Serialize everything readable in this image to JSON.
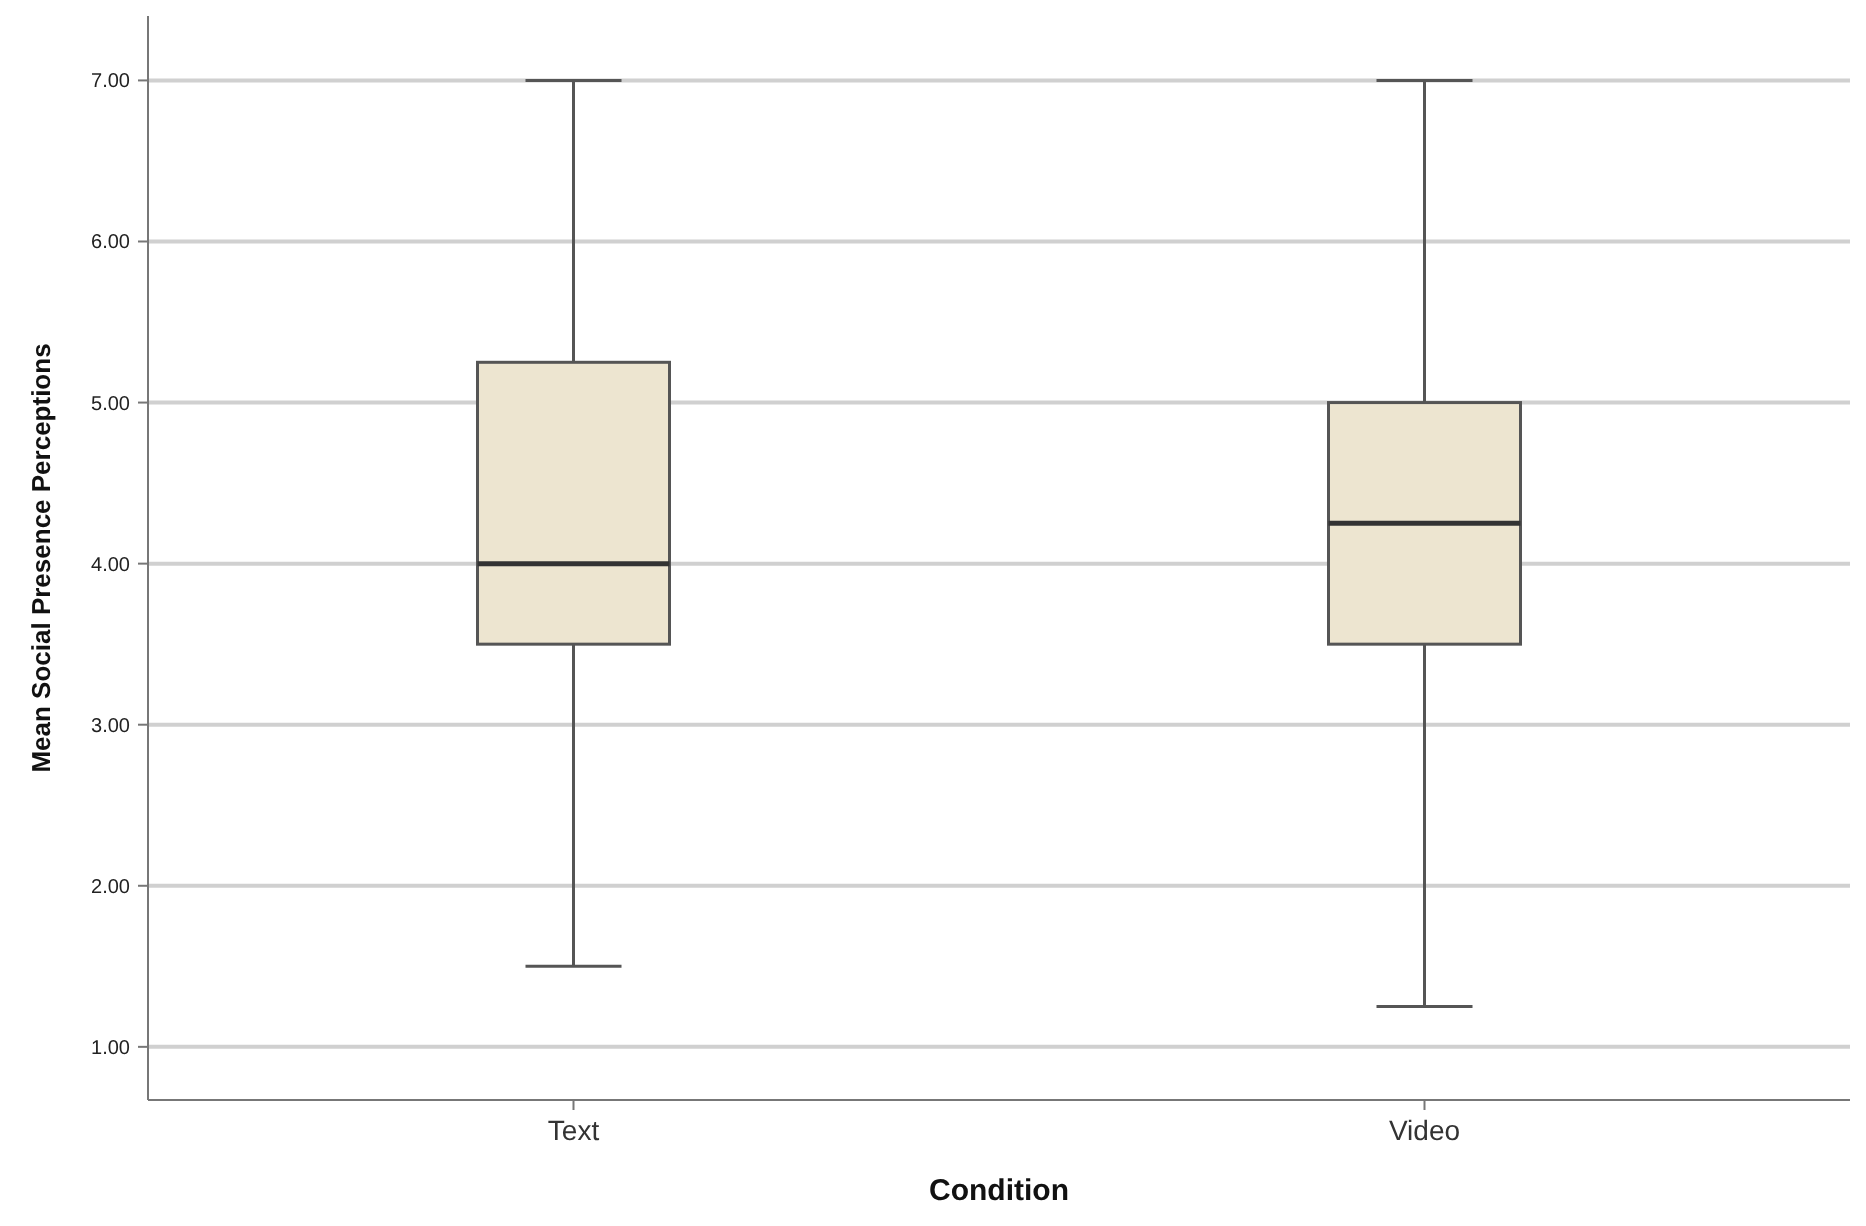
{
  "chart_data": {
    "type": "box",
    "xlabel": "Condition",
    "ylabel": "Mean Social Presence Perceptions",
    "categories": [
      "Text",
      "Video"
    ],
    "color": "#ede5d0",
    "boxes": [
      {
        "low": 1.5,
        "q1": 3.5,
        "median": 4.0,
        "q3": 5.25,
        "high": 7.0
      },
      {
        "low": 1.25,
        "q1": 3.5,
        "median": 4.25,
        "q3": 5.0,
        "high": 7.0
      }
    ],
    "ylim": [
      0.67,
      7.4
    ],
    "yticks": [
      {
        "value": 1,
        "label": "1.00"
      },
      {
        "value": 2,
        "label": "2.00"
      },
      {
        "value": 3,
        "label": "3.00"
      },
      {
        "value": 4,
        "label": "4.00"
      },
      {
        "value": 5,
        "label": "5.00"
      },
      {
        "value": 6,
        "label": "6.00"
      },
      {
        "value": 7,
        "label": "7.00"
      }
    ],
    "grid": "y"
  }
}
